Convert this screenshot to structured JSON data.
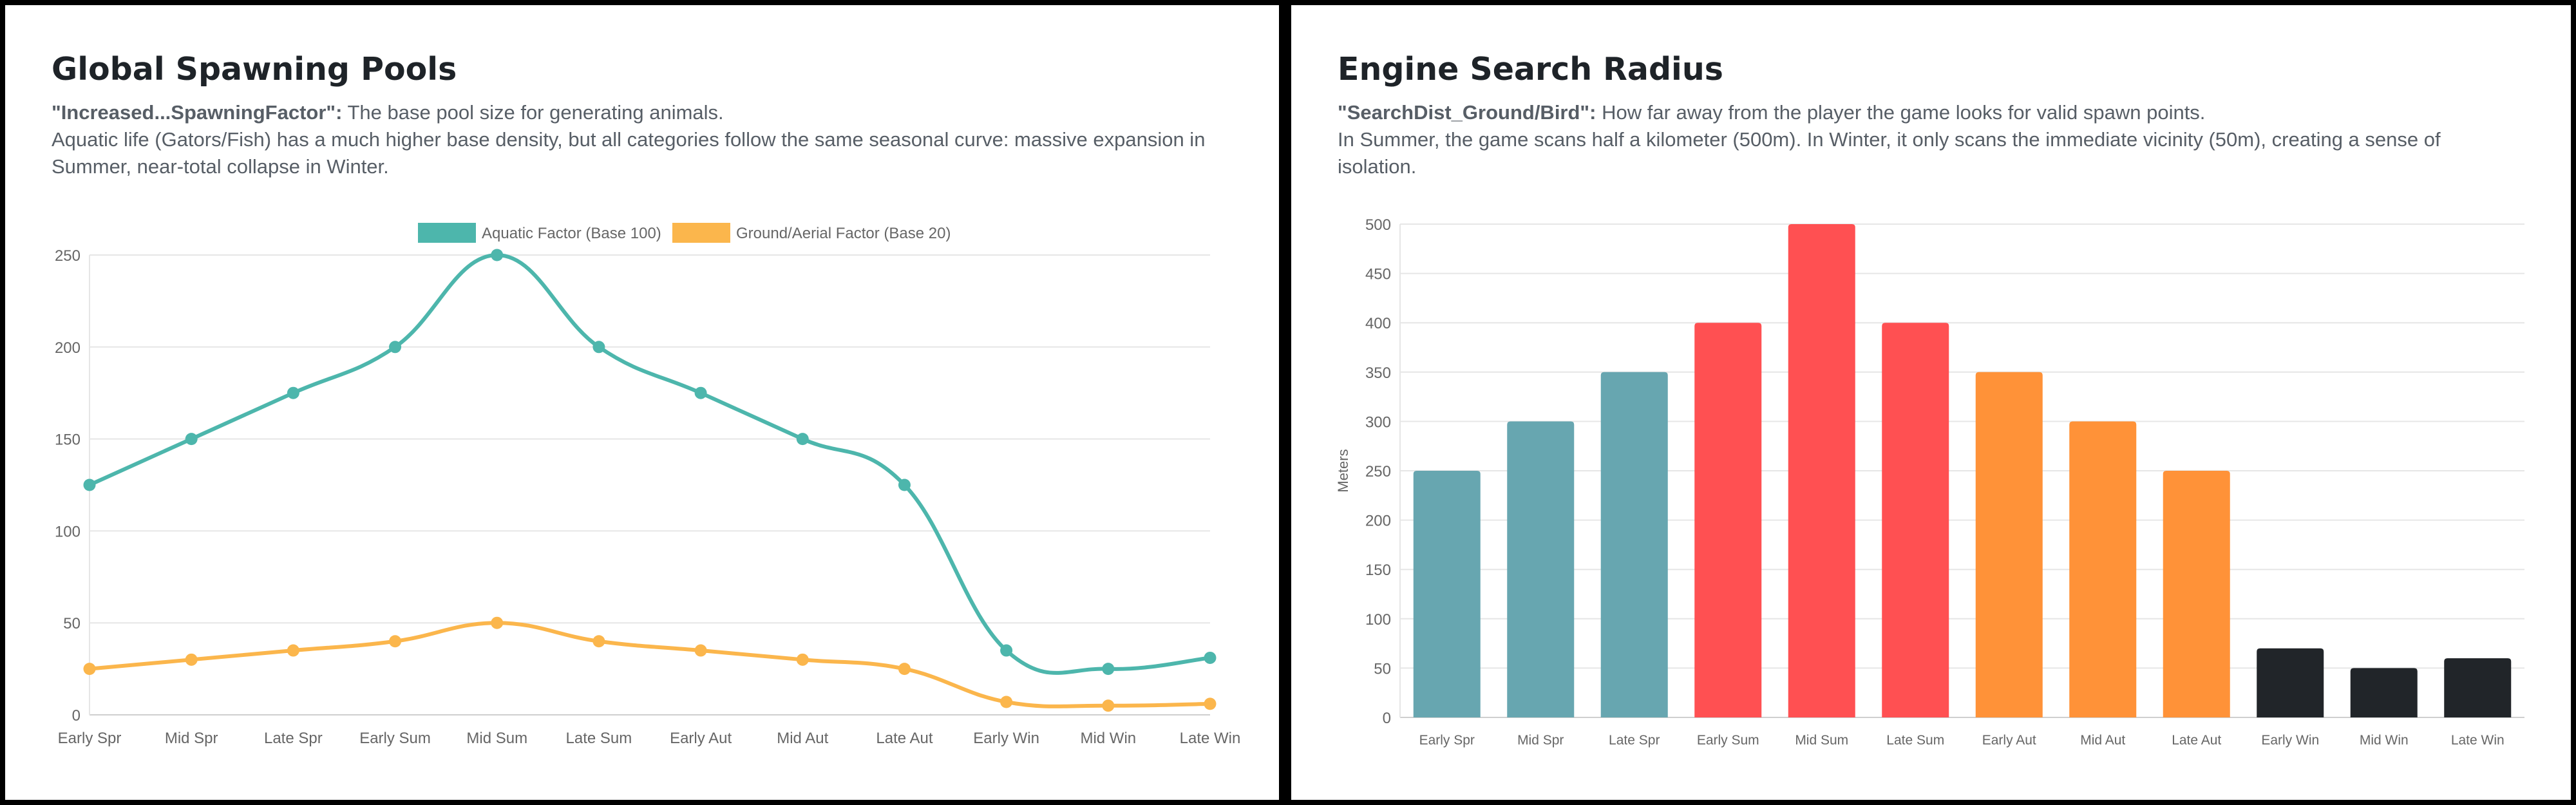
{
  "panels": [
    {
      "title": "Global Spawning Pools",
      "desc_key": "\"Increased...SpawningFactor\":",
      "desc_key_text": "The base pool size for generating animals.",
      "desc_text": "Aquatic life (Gators/Fish) has a much higher base density, but all categories follow the same seasonal curve: massive expansion in Summer, near-total collapse in Winter."
    },
    {
      "title": "Engine Search Radius",
      "desc_key": "\"SearchDist_Ground/Bird\":",
      "desc_key_text": "How far away from the player the game looks for valid spawn points.",
      "desc_text": "In Summer, the game scans half a kilometer (500m). In Winter, it only scans the immediate vicinity (50m), creating a sense of isolation."
    }
  ],
  "chart_data": [
    {
      "type": "line",
      "categories": [
        "Early Spr",
        "Mid Spr",
        "Late Spr",
        "Early Sum",
        "Mid Sum",
        "Late Sum",
        "Early Aut",
        "Mid Aut",
        "Late Aut",
        "Early Win",
        "Mid Win",
        "Late Win"
      ],
      "series": [
        {
          "name": "Aquatic Factor (Base 100)",
          "color": "#4db6ac",
          "values": [
            125,
            150,
            175,
            200,
            250,
            200,
            175,
            150,
            125,
            35,
            25,
            31
          ]
        },
        {
          "name": "Ground/Aerial Factor (Base 20)",
          "color": "#fbb64c",
          "values": [
            25,
            30,
            35,
            40,
            50,
            40,
            35,
            30,
            25,
            7,
            5,
            6
          ]
        }
      ],
      "ylim": [
        0,
        250
      ],
      "yticks": [
        0,
        50,
        100,
        150,
        200,
        250
      ],
      "grid": true,
      "legend": "top-center",
      "smooth": true
    },
    {
      "type": "bar",
      "categories": [
        "Early Spr",
        "Mid Spr",
        "Late Spr",
        "Early Sum",
        "Mid Sum",
        "Late Sum",
        "Early Aut",
        "Mid Aut",
        "Late Aut",
        "Early Win",
        "Mid Win",
        "Late Win"
      ],
      "values": [
        250,
        300,
        350,
        400,
        500,
        400,
        350,
        300,
        250,
        70,
        50,
        60
      ],
      "colors": [
        "#67a6b0",
        "#67a6b0",
        "#67a6b0",
        "#ff5052",
        "#ff5052",
        "#ff5052",
        "#ff9238",
        "#ff9238",
        "#ff9238",
        "#212529",
        "#212529",
        "#212529"
      ],
      "ylabel": "Meters",
      "ylim": [
        0,
        500
      ],
      "yticks": [
        0,
        50,
        100,
        150,
        200,
        250,
        300,
        350,
        400,
        450,
        500
      ],
      "grid": true,
      "legend": "none"
    }
  ]
}
